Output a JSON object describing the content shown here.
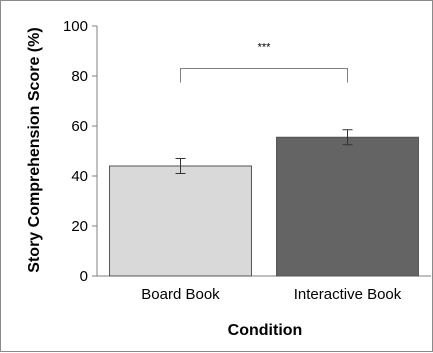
{
  "chart_data": {
    "type": "bar",
    "categories": [
      "Board Book",
      "Interactive Book"
    ],
    "values": [
      44,
      55.5
    ],
    "errors": [
      3,
      3
    ],
    "colors": [
      "#d9d9d9",
      "#646464"
    ],
    "xlabel": "Condition",
    "ylabel": "Story Comprehension Score (%)",
    "ylim": [
      0,
      100
    ],
    "yticks": [
      0,
      20,
      40,
      60,
      80,
      100
    ],
    "grid": false,
    "legend": "none",
    "annotation": {
      "text": "***",
      "between": [
        0,
        1
      ],
      "y": 83
    }
  }
}
